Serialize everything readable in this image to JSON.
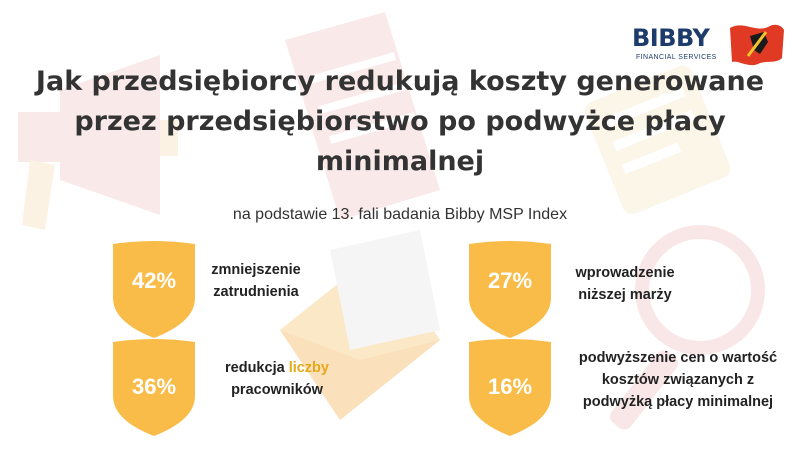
{
  "title": {
    "line1": "Jak przedsiębiorcy redukują koszty generowane",
    "line2": "przez przedsiębiorstwo po podwyżce płacy",
    "line3": "minimalnej"
  },
  "subtitle": "na podstawie 13. fali badania Bibby MSP Index",
  "logo": {
    "name": "BIBBY",
    "tagline": "FINANCIAL SERVICES",
    "colors": {
      "text": "#1d3c6b",
      "flag": "#e03a24"
    }
  },
  "stats": [
    {
      "value": "42%",
      "label_line1": "zmniejszenie",
      "label_line2": "zatrudnienia"
    },
    {
      "value": "27%",
      "label_line1": "wprowadzenie",
      "label_line2": "niższej marży"
    },
    {
      "value": "36%",
      "label_line1_a": "redukcja ",
      "label_line1_b": "liczby",
      "label_line2": "pracowników"
    },
    {
      "value": "16%",
      "label_line1": "podwyższenie cen o wartość",
      "label_line2": "kosztów związanych z",
      "label_line3": "podwyżką płacy minimalnej"
    }
  ],
  "colors": {
    "shield": "#f9bc48",
    "highlight": "#e6a817",
    "title": "#333333"
  },
  "background_icons": [
    "megaphone-icon",
    "document-icon",
    "clipboard-icon",
    "envelope-icon",
    "magnifier-icon"
  ]
}
